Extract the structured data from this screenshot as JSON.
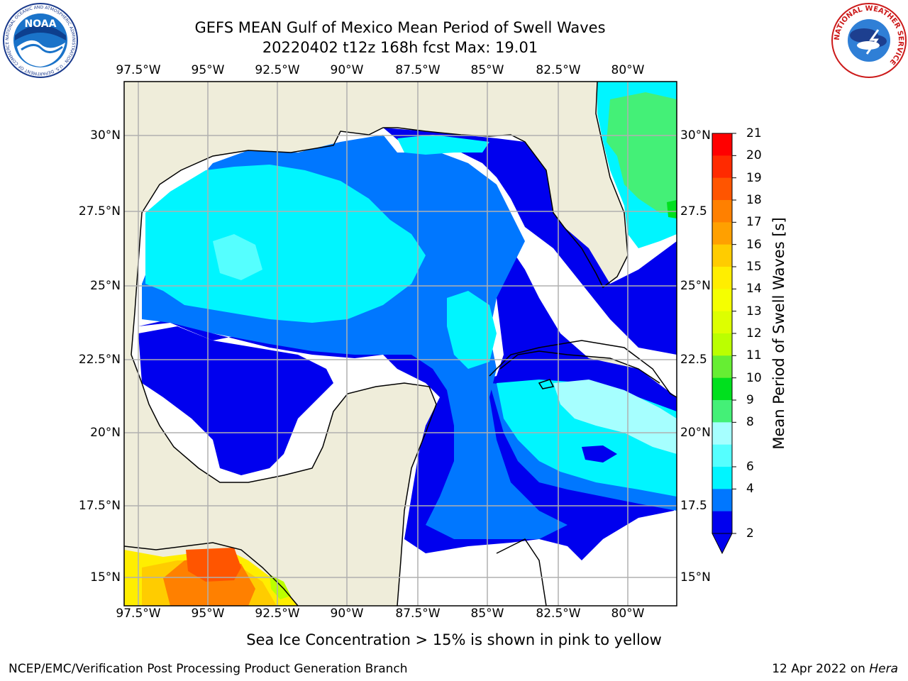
{
  "title": {
    "line1": "GEFS MEAN Gulf of Mexico Mean Period of Swell Waves",
    "line2": "20220402 t12z 168h fcst   Max: 19.01"
  },
  "map": {
    "longitude_ticks": [
      "97.5°W",
      "95°W",
      "92.5°W",
      "90°W",
      "87.5°W",
      "85°W",
      "82.5°W",
      "80°W"
    ],
    "latitude_ticks_left": [
      "30°N",
      "27.5°N",
      "25°N",
      "22.5°N",
      "20°N",
      "17.5°N",
      "15°N"
    ],
    "latitude_ticks_right": [
      "30°N",
      "27.5",
      "25°N",
      "22.5",
      "20°N",
      "17.5",
      "15°N"
    ],
    "colors": {
      "land": "#efedda",
      "no_data": "#ffffff",
      "grid": "#b0b0b0"
    }
  },
  "colorbar": {
    "label": "Mean Period of Swell Waves [s]",
    "ticks": [
      "21",
      "20",
      "19",
      "18",
      "17",
      "16",
      "15",
      "14",
      "13",
      "12",
      "11",
      "10",
      "9",
      "8",
      "6",
      "4",
      "2"
    ],
    "colors": [
      "#ff0000",
      "#ff2a00",
      "#ff5500",
      "#ff8000",
      "#ffa000",
      "#ffcc00",
      "#ffee00",
      "#f5ff00",
      "#ddff00",
      "#bbff00",
      "#66ee33",
      "#00e01e",
      "#44f077",
      "#a6ffff",
      "#55ffff",
      "#00f5ff",
      "#0077ff",
      "#0000ee"
    ]
  },
  "subtitle": "Sea Ice Concentration > 15% is shown in pink to yellow",
  "footer": {
    "left": "NCEP/EMC/Verification Post Processing Product Generation Branch",
    "right_prefix": "12 Apr 2022 on ",
    "right_host": "Hera"
  },
  "logos": {
    "left": {
      "text": "NOAA",
      "ring_text": "NATIONAL OCEANIC AND ATMOSPHERIC ADMINISTRATION · U.S. DEPARTMENT OF COMMERCE"
    },
    "right": {
      "ring_text": "NATIONAL WEATHER SERVICE"
    }
  }
}
